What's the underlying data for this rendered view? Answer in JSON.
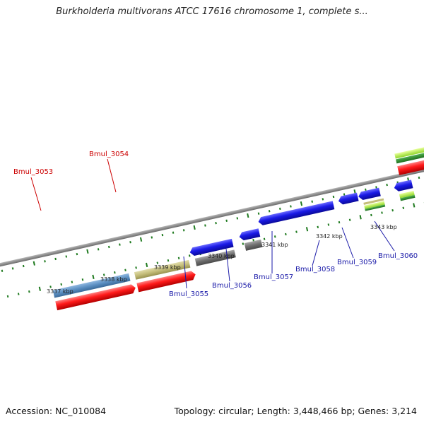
{
  "title": "Burkholderia multivorans ATCC 17616 chromosome 1, complete s...",
  "footer": {
    "accession": "Accession: NC_010084",
    "summary": "Topology: circular; Length: 3,448,466 bp; Genes: 3,214"
  },
  "colors": {
    "forward_label": "#cc0000",
    "reverse_label": "#1a1aa8",
    "tick": "#1f7a1f",
    "backbone": "#808080",
    "cds_forward": "#ff1a1a",
    "cds_reverse": "#1a1ae6",
    "rrna": "#5b8fc2",
    "trna": "#c4bd7a",
    "pseudo": "#6e6e6e",
    "green_feature": "#7fd42a",
    "dark_green_feature": "#2e8b2e"
  },
  "scale": {
    "labels": [
      "3337 kbp",
      "3338 kbp",
      "3339 kbp",
      "3340 kbp",
      "3341 kbp",
      "3342 kbp",
      "3343 kbp"
    ],
    "kbp_values": [
      3337,
      3338,
      3339,
      3340,
      3341,
      3342,
      3343
    ]
  },
  "genes": [
    {
      "name": "Bmul_3053",
      "strand": "forward"
    },
    {
      "name": "Bmul_3054",
      "strand": "forward"
    },
    {
      "name": "Bmul_3055",
      "strand": "reverse"
    },
    {
      "name": "Bmul_3056",
      "strand": "reverse"
    },
    {
      "name": "Bmul_3057",
      "strand": "reverse"
    },
    {
      "name": "Bmul_3058",
      "strand": "reverse"
    },
    {
      "name": "Bmul_3059",
      "strand": "reverse"
    },
    {
      "name": "Bmul_3060",
      "strand": "reverse"
    }
  ]
}
